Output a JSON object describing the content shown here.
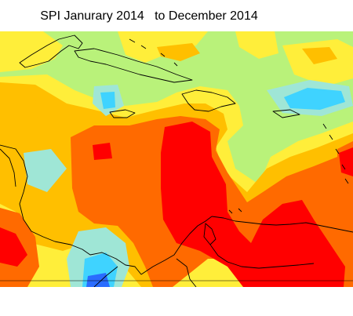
{
  "map": {
    "title": "SPI Janurary 2014   to December 2014",
    "palette": {
      "very_dry": "#ff0000",
      "dry": "#ff6a00",
      "moderately_dry": "#ffbf00",
      "slightly_dry": "#ffee3a",
      "near_normal": "#b9f27a",
      "slightly_wet": "#9fe6d6",
      "wet": "#3fd3ff",
      "very_wet": "#2a6cff"
    }
  }
}
